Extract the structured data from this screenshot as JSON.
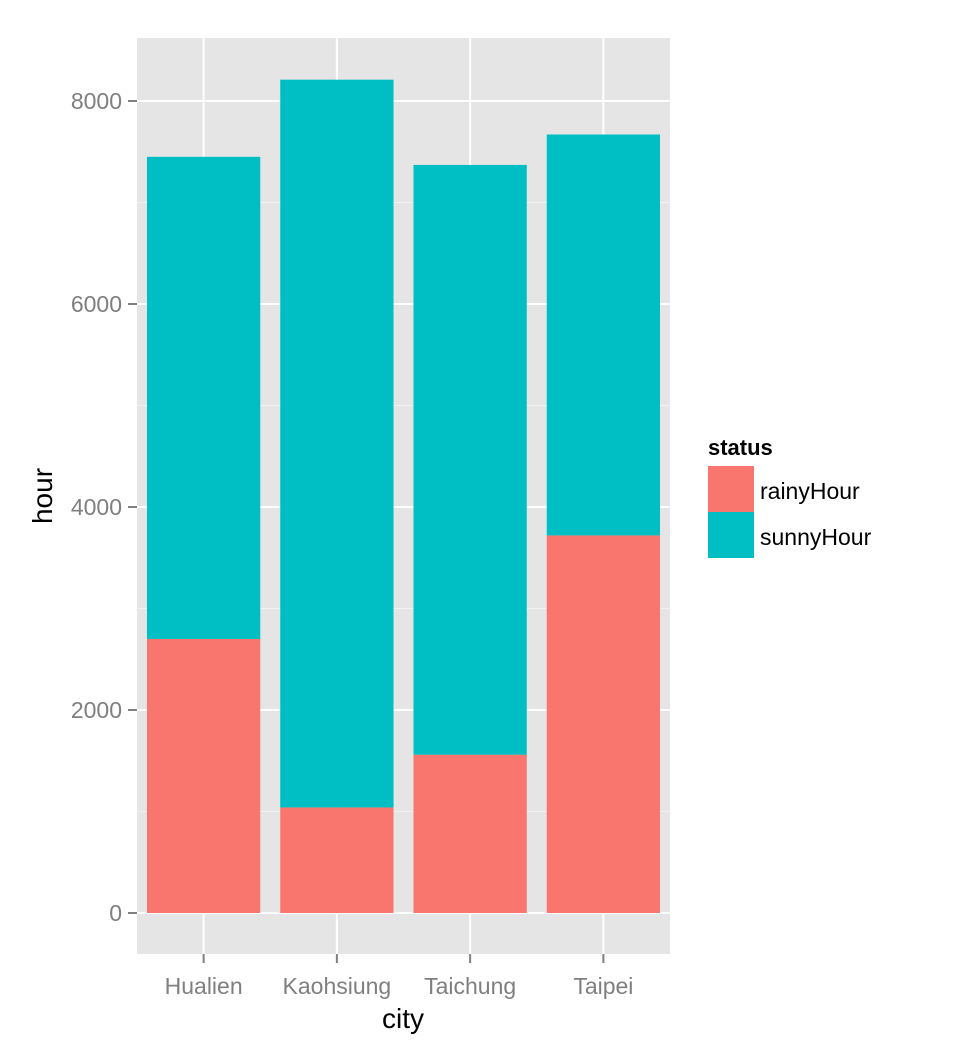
{
  "chart_data": {
    "type": "bar",
    "stacked": true,
    "categories": [
      "Hualien",
      "Kaohsiung",
      "Taichung",
      "Taipei"
    ],
    "series": [
      {
        "name": "rainyHour",
        "color": "#F8766D",
        "values": [
          2700,
          1040,
          1560,
          3720
        ]
      },
      {
        "name": "sunnyHour",
        "color": "#00BFC4",
        "values": [
          4750,
          7170,
          5810,
          3950
        ]
      }
    ],
    "xlabel": "city",
    "ylabel": "hour",
    "ylim": [
      -400,
      8600
    ],
    "yticks": [
      0,
      2000,
      4000,
      6000,
      8000
    ],
    "grid": true,
    "legend": {
      "title": "status",
      "position": "right"
    },
    "colors": {
      "panel": "#E5E5E5",
      "grid": "#FFFFFF",
      "tick_text": "#7F7F7F"
    }
  }
}
